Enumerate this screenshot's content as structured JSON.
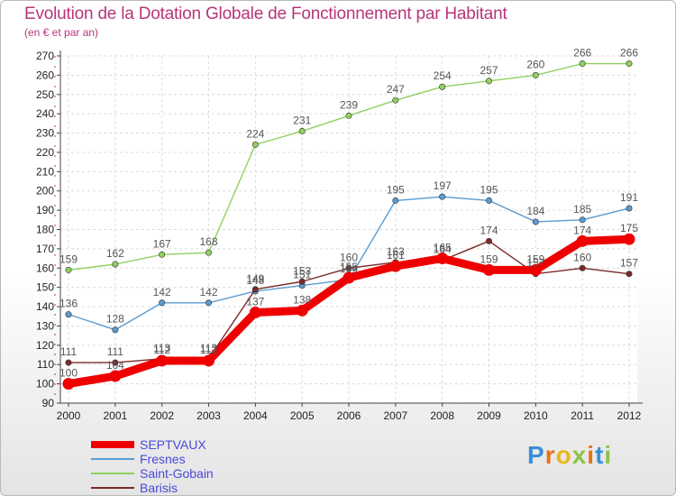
{
  "header": {
    "title": "Evolution de la Dotation Globale de Fonctionnement par Habitant",
    "subtitle": "(en € et par an)"
  },
  "logo": {
    "text": "Proxiti"
  },
  "chart_data": {
    "type": "line",
    "title": "Evolution de la Dotation Globale de Fonctionnement par Habitant",
    "subtitle": "(en € et par an)",
    "xlabel": "",
    "ylabel": "",
    "x": [
      "2000",
      "2001",
      "2002",
      "2003",
      "2004",
      "2005",
      "2006",
      "2007",
      "2008",
      "2009",
      "2010",
      "2011",
      "2012"
    ],
    "ylim": [
      90,
      270
    ],
    "yticks": [
      90,
      100,
      110,
      120,
      130,
      140,
      150,
      160,
      170,
      180,
      190,
      200,
      210,
      220,
      230,
      240,
      250,
      260,
      270
    ],
    "grid": true,
    "legend_position": "bottom-left",
    "series": [
      {
        "name": "SEPTVAUX",
        "color": "#ee0000",
        "values": [
          100,
          104,
          112,
          112,
          137,
          138,
          155,
          161,
          165,
          159,
          159,
          174,
          175
        ]
      },
      {
        "name": "Fresnes",
        "color": "#5b9bd0",
        "values": [
          136,
          128,
          142,
          142,
          148,
          151,
          154,
          195,
          197,
          195,
          184,
          185,
          191
        ]
      },
      {
        "name": "Saint-Gobain",
        "color": "#90d060",
        "values": [
          159,
          162,
          167,
          168,
          224,
          231,
          239,
          247,
          254,
          257,
          260,
          266,
          266
        ]
      },
      {
        "name": "Barisis",
        "color": "#7b2a2a",
        "values": [
          111,
          111,
          113,
          113,
          149,
          153,
          160,
          163,
          164,
          174,
          157,
          160,
          157
        ]
      }
    ]
  }
}
